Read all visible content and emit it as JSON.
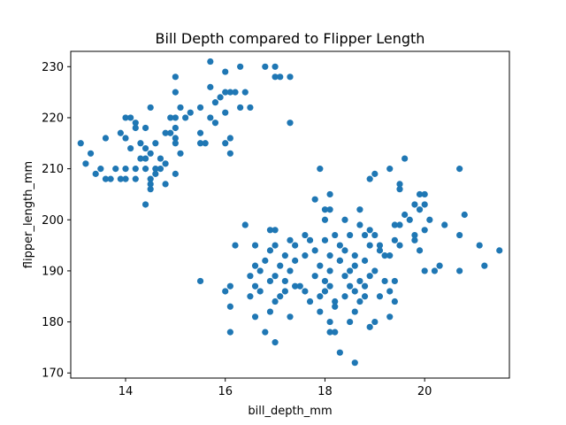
{
  "chart_data": {
    "type": "scatter",
    "title": "Bill Depth compared to Flipper Length",
    "xlabel": "bill_depth_mm",
    "ylabel": "flipper_length_mm",
    "xlim": [
      12.9,
      21.7
    ],
    "ylim": [
      169,
      233
    ],
    "xticks": [
      14,
      16,
      18,
      20
    ],
    "yticks": [
      170,
      180,
      190,
      200,
      210,
      220,
      230
    ],
    "grid": false,
    "marker_color": "#1f77b4",
    "series": [
      {
        "points": [
          [
            15.7,
            231
          ],
          [
            16.3,
            230
          ],
          [
            16.0,
            229
          ],
          [
            17.0,
            230
          ],
          [
            16.8,
            230
          ],
          [
            17.3,
            228
          ],
          [
            17.0,
            228
          ],
          [
            17.1,
            228
          ],
          [
            15.0,
            228
          ],
          [
            15.7,
            226
          ],
          [
            16.2,
            225
          ],
          [
            16.1,
            225
          ],
          [
            15.8,
            223
          ],
          [
            16.5,
            222
          ],
          [
            15.0,
            225
          ],
          [
            16.0,
            225
          ],
          [
            16.4,
            225
          ],
          [
            15.9,
            224
          ],
          [
            14.5,
            222
          ],
          [
            15.1,
            222
          ],
          [
            15.5,
            222
          ],
          [
            16.3,
            222
          ],
          [
            16.0,
            221
          ],
          [
            15.3,
            221
          ],
          [
            14.9,
            220
          ],
          [
            14.0,
            220
          ],
          [
            14.1,
            220
          ],
          [
            14.2,
            219
          ],
          [
            15.2,
            220
          ],
          [
            15.0,
            220
          ],
          [
            15.7,
            220
          ],
          [
            17.3,
            219
          ],
          [
            15.0,
            218
          ],
          [
            14.4,
            218
          ],
          [
            14.2,
            218
          ],
          [
            15.8,
            219
          ],
          [
            14.9,
            217
          ],
          [
            13.9,
            217
          ],
          [
            14.8,
            217
          ],
          [
            15.5,
            217
          ],
          [
            14.0,
            216
          ],
          [
            13.6,
            216
          ],
          [
            15.0,
            216
          ],
          [
            16.1,
            216
          ],
          [
            14.3,
            215
          ],
          [
            15.0,
            215
          ],
          [
            16.0,
            215
          ],
          [
            13.1,
            215
          ],
          [
            14.6,
            215
          ],
          [
            15.5,
            215
          ],
          [
            15.6,
            215
          ],
          [
            14.4,
            214
          ],
          [
            14.1,
            214
          ],
          [
            14.5,
            213
          ],
          [
            15.1,
            213
          ],
          [
            16.1,
            213
          ],
          [
            13.3,
            213
          ],
          [
            14.7,
            212
          ],
          [
            14.4,
            212
          ],
          [
            14.3,
            212
          ],
          [
            14.8,
            211
          ],
          [
            13.2,
            211
          ],
          [
            13.8,
            210
          ],
          [
            14.0,
            210
          ],
          [
            14.2,
            210
          ],
          [
            14.4,
            210
          ],
          [
            14.6,
            210
          ],
          [
            14.7,
            210
          ],
          [
            13.5,
            210
          ],
          [
            15.0,
            209
          ],
          [
            14.6,
            209
          ],
          [
            13.4,
            209
          ],
          [
            14.0,
            208
          ],
          [
            13.7,
            208
          ],
          [
            13.9,
            208
          ],
          [
            14.2,
            208
          ],
          [
            14.5,
            208
          ],
          [
            13.6,
            208
          ],
          [
            14.5,
            207
          ],
          [
            14.8,
            207
          ],
          [
            14.5,
            206
          ],
          [
            14.4,
            203
          ],
          [
            19.6,
            212
          ],
          [
            19.3,
            210
          ],
          [
            20.7,
            210
          ],
          [
            17.9,
            210
          ],
          [
            19.0,
            209
          ],
          [
            18.9,
            208
          ],
          [
            19.5,
            207
          ],
          [
            19.5,
            206
          ],
          [
            19.9,
            205
          ],
          [
            20.0,
            205
          ],
          [
            18.1,
            205
          ],
          [
            17.8,
            204
          ],
          [
            19.8,
            203
          ],
          [
            20.0,
            203
          ],
          [
            19.9,
            202
          ],
          [
            18.0,
            202
          ],
          [
            18.1,
            202
          ],
          [
            18.7,
            202
          ],
          [
            19.6,
            201
          ],
          [
            20.8,
            201
          ],
          [
            18.0,
            200
          ],
          [
            18.7,
            199
          ],
          [
            19.4,
            199
          ],
          [
            20.4,
            199
          ],
          [
            19.5,
            199
          ],
          [
            18.4,
            200
          ],
          [
            19.7,
            200
          ],
          [
            20.1,
            200
          ],
          [
            16.4,
            199
          ],
          [
            16.9,
            198
          ],
          [
            17.0,
            198
          ],
          [
            18.9,
            198
          ],
          [
            20.0,
            198
          ],
          [
            20.7,
            197
          ],
          [
            17.6,
            197
          ],
          [
            18.2,
            197
          ],
          [
            18.5,
            197
          ],
          [
            18.8,
            197
          ],
          [
            19.0,
            197
          ],
          [
            19.4,
            196
          ],
          [
            19.8,
            196
          ],
          [
            17.3,
            196
          ],
          [
            17.7,
            196
          ],
          [
            18.0,
            196
          ],
          [
            19.8,
            197
          ],
          [
            16.6,
            195
          ],
          [
            16.2,
            195
          ],
          [
            17.0,
            195
          ],
          [
            17.4,
            195
          ],
          [
            18.3,
            195
          ],
          [
            18.9,
            195
          ],
          [
            19.1,
            195
          ],
          [
            19.5,
            195
          ],
          [
            21.1,
            195
          ],
          [
            21.5,
            194
          ],
          [
            16.9,
            194
          ],
          [
            17.8,
            194
          ],
          [
            18.4,
            194
          ],
          [
            19.1,
            194
          ],
          [
            19.9,
            194
          ],
          [
            17.2,
            193
          ],
          [
            17.6,
            193
          ],
          [
            18.1,
            193
          ],
          [
            18.6,
            193
          ],
          [
            19.2,
            193
          ],
          [
            19.3,
            193
          ],
          [
            16.8,
            192
          ],
          [
            17.4,
            192
          ],
          [
            18.3,
            192
          ],
          [
            18.8,
            192
          ],
          [
            18.3,
            192
          ],
          [
            16.6,
            191
          ],
          [
            17.1,
            191
          ],
          [
            17.9,
            191
          ],
          [
            18.6,
            191
          ],
          [
            20.3,
            191
          ],
          [
            21.2,
            191
          ],
          [
            16.7,
            190
          ],
          [
            17.3,
            190
          ],
          [
            18.1,
            190
          ],
          [
            18.5,
            190
          ],
          [
            19.0,
            190
          ],
          [
            20.0,
            190
          ],
          [
            20.2,
            190
          ],
          [
            20.7,
            190
          ],
          [
            16.5,
            189
          ],
          [
            17.0,
            189
          ],
          [
            17.8,
            189
          ],
          [
            18.4,
            189
          ],
          [
            18.9,
            189
          ],
          [
            16.9,
            188
          ],
          [
            17.2,
            188
          ],
          [
            15.5,
            188
          ],
          [
            18.0,
            188
          ],
          [
            18.7,
            188
          ],
          [
            19.2,
            188
          ],
          [
            19.4,
            188
          ],
          [
            16.6,
            187
          ],
          [
            16.1,
            187
          ],
          [
            17.4,
            187
          ],
          [
            17.5,
            187
          ],
          [
            18.1,
            187
          ],
          [
            18.5,
            187
          ],
          [
            18.8,
            187
          ],
          [
            16.0,
            186
          ],
          [
            16.7,
            186
          ],
          [
            17.2,
            186
          ],
          [
            17.6,
            186
          ],
          [
            18.0,
            186
          ],
          [
            18.6,
            186
          ],
          [
            19.3,
            186
          ],
          [
            16.5,
            185
          ],
          [
            17.1,
            185
          ],
          [
            17.9,
            185
          ],
          [
            18.4,
            185
          ],
          [
            18.8,
            185
          ],
          [
            19.1,
            185
          ],
          [
            17.0,
            184
          ],
          [
            17.7,
            184
          ],
          [
            18.2,
            184
          ],
          [
            18.7,
            184
          ],
          [
            19.4,
            184
          ],
          [
            16.1,
            183
          ],
          [
            18.2,
            183
          ],
          [
            16.9,
            182
          ],
          [
            17.9,
            182
          ],
          [
            18.6,
            182
          ],
          [
            19.3,
            181
          ],
          [
            16.6,
            181
          ],
          [
            17.3,
            181
          ],
          [
            18.1,
            180
          ],
          [
            18.5,
            180
          ],
          [
            19.0,
            180
          ],
          [
            18.9,
            179
          ],
          [
            16.8,
            178
          ],
          [
            16.1,
            178
          ],
          [
            18.1,
            178
          ],
          [
            18.2,
            178
          ],
          [
            17.0,
            176
          ],
          [
            18.3,
            174
          ],
          [
            18.6,
            172
          ]
        ]
      }
    ]
  }
}
